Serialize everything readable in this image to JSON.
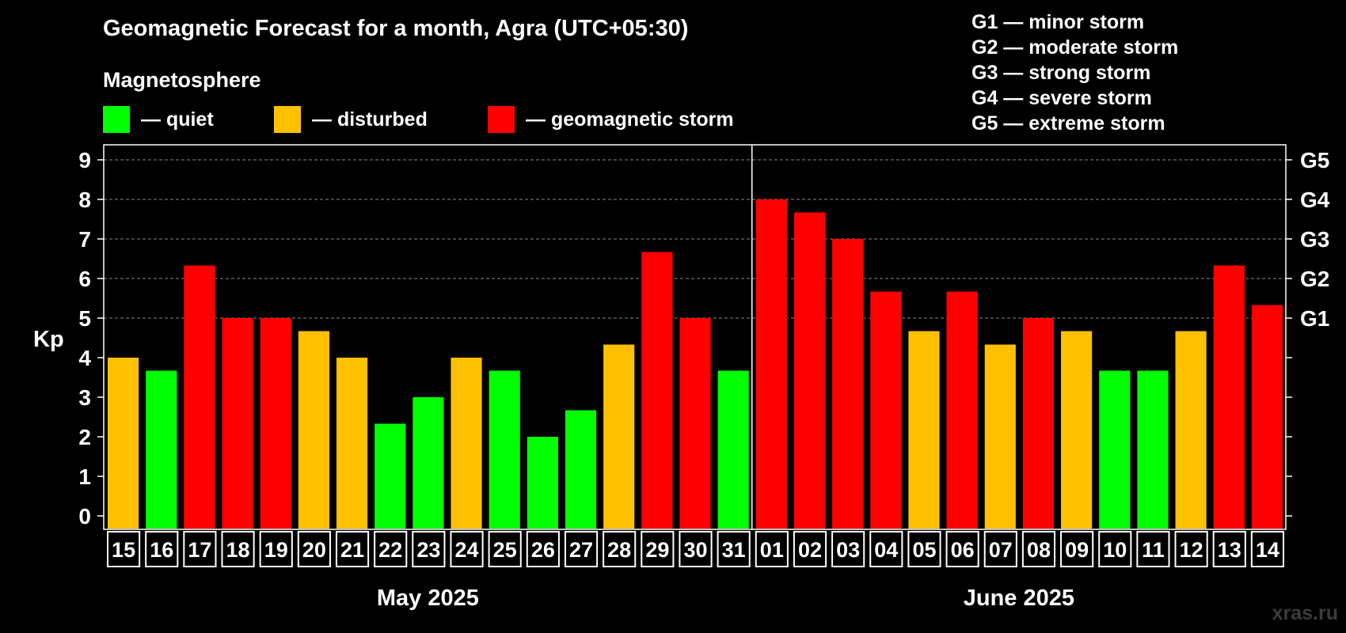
{
  "title": "Geomagnetic Forecast for a month, Agra (UTC+05:30)",
  "magnetosphere_label": "Magnetosphere",
  "legend": [
    {
      "label": "— quiet",
      "color": "#00ff00"
    },
    {
      "label": "— disturbed",
      "color": "#ffc000"
    },
    {
      "label": "— geomagnetic storm",
      "color": "#ff0000"
    }
  ],
  "storm_scale": [
    "G1 — minor storm",
    "G2 — moderate storm",
    "G3 — strong storm",
    "G4 — severe storm",
    "G5 — extreme storm"
  ],
  "watermark": "xras.ru",
  "colors": {
    "quiet": "#00ff00",
    "disturbed": "#ffc000",
    "storm": "#ff0000",
    "background": "#000000"
  },
  "chart_data": {
    "type": "bar",
    "ylabel": "Kp",
    "ylim": [
      0,
      9
    ],
    "yticks": [
      "0",
      "1",
      "2",
      "3",
      "4",
      "5",
      "6",
      "7",
      "8",
      "9"
    ],
    "right_ticks": [
      {
        "value": 5,
        "label": "G1"
      },
      {
        "value": 6,
        "label": "G2"
      },
      {
        "value": 7,
        "label": "G3"
      },
      {
        "value": 8,
        "label": "G4"
      },
      {
        "value": 9,
        "label": "G5"
      }
    ],
    "grid": true,
    "months": [
      {
        "label": "May 2025",
        "days": 17
      },
      {
        "label": "June 2025",
        "days": 14
      }
    ],
    "categories": [
      "15",
      "16",
      "17",
      "18",
      "19",
      "20",
      "21",
      "22",
      "23",
      "24",
      "25",
      "26",
      "27",
      "28",
      "29",
      "30",
      "31",
      "01",
      "02",
      "03",
      "04",
      "05",
      "06",
      "07",
      "08",
      "09",
      "10",
      "11",
      "12",
      "13",
      "14"
    ],
    "values": [
      4.0,
      3.67,
      6.33,
      5.0,
      5.0,
      4.67,
      4.0,
      2.33,
      3.0,
      4.0,
      3.67,
      2.0,
      2.67,
      4.33,
      6.67,
      5.0,
      3.67,
      8.0,
      7.67,
      7.0,
      5.67,
      4.67,
      5.67,
      4.33,
      5.0,
      4.67,
      3.67,
      3.67,
      4.67,
      6.33,
      5.33
    ],
    "levels": [
      "disturbed",
      "quiet",
      "storm",
      "storm",
      "storm",
      "disturbed",
      "disturbed",
      "quiet",
      "quiet",
      "disturbed",
      "quiet",
      "quiet",
      "quiet",
      "disturbed",
      "storm",
      "storm",
      "quiet",
      "storm",
      "storm",
      "storm",
      "storm",
      "disturbed",
      "storm",
      "disturbed",
      "storm",
      "disturbed",
      "quiet",
      "quiet",
      "disturbed",
      "storm",
      "storm"
    ]
  }
}
